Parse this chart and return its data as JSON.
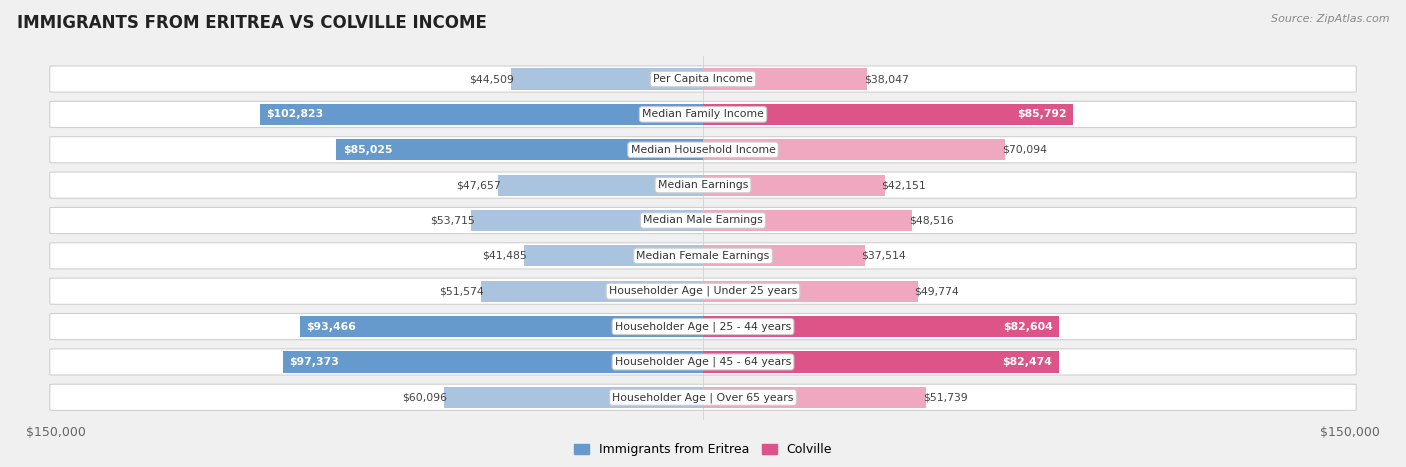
{
  "title": "IMMIGRANTS FROM ERITREA VS COLVILLE INCOME",
  "source": "Source: ZipAtlas.com",
  "categories": [
    "Per Capita Income",
    "Median Family Income",
    "Median Household Income",
    "Median Earnings",
    "Median Male Earnings",
    "Median Female Earnings",
    "Householder Age | Under 25 years",
    "Householder Age | 25 - 44 years",
    "Householder Age | 45 - 64 years",
    "Householder Age | Over 65 years"
  ],
  "eritrea_values": [
    44509,
    102823,
    85025,
    47657,
    53715,
    41485,
    51574,
    93466,
    97373,
    60096
  ],
  "colville_values": [
    38047,
    85792,
    70094,
    42151,
    48516,
    37514,
    49774,
    82604,
    82474,
    51739
  ],
  "eritrea_labels": [
    "$44,509",
    "$102,823",
    "$85,025",
    "$47,657",
    "$53,715",
    "$41,485",
    "$51,574",
    "$93,466",
    "$97,373",
    "$60,096"
  ],
  "colville_labels": [
    "$38,047",
    "$85,792",
    "$70,094",
    "$42,151",
    "$48,516",
    "$37,514",
    "$49,774",
    "$82,604",
    "$82,474",
    "$51,739"
  ],
  "eritrea_color_strong": "#6699cc",
  "eritrea_color_light": "#aac4e0",
  "colville_color_strong": "#dd5588",
  "colville_color_light": "#f0a8c0",
  "inside_threshold": 75000,
  "max_val": 150000,
  "legend_eritrea": "Immigrants from Eritrea",
  "legend_colville": "Colville",
  "background_color": "#f0f0f0",
  "row_bg_color": "#ffffff",
  "row_border_color": "#d0d0d0"
}
